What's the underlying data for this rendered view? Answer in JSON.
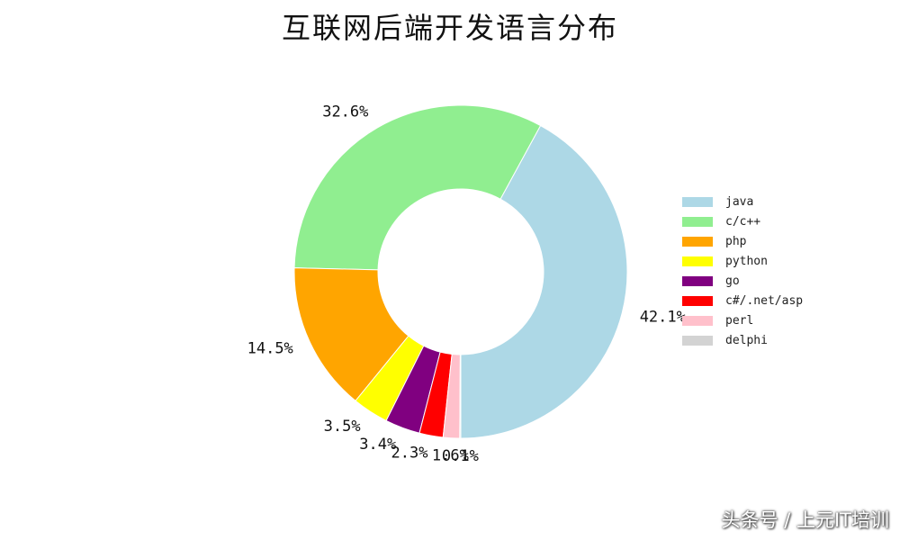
{
  "chart_data": {
    "type": "pie",
    "donut": true,
    "title": "互联网后端开发语言分布",
    "categories": [
      "java",
      "c/c++",
      "php",
      "python",
      "go",
      "c#/.net/asp",
      "perl",
      "delphi"
    ],
    "values": [
      42.1,
      32.6,
      14.5,
      3.5,
      3.4,
      2.3,
      1.6,
      0.1
    ],
    "labels": [
      "42.1%",
      "32.6%",
      "14.5%",
      "3.5%",
      "3.4%",
      "2.3%",
      "1.6%",
      "0.1%"
    ],
    "colors": [
      "#add8e6",
      "#90ee90",
      "#ffa500",
      "#ffff00",
      "#800080",
      "#ff0000",
      "#ffc0cb",
      "#d3d3d3"
    ],
    "legend": "right",
    "start": "bottom, counterclockwise"
  },
  "watermark": "头条号 / 上元IT培训"
}
